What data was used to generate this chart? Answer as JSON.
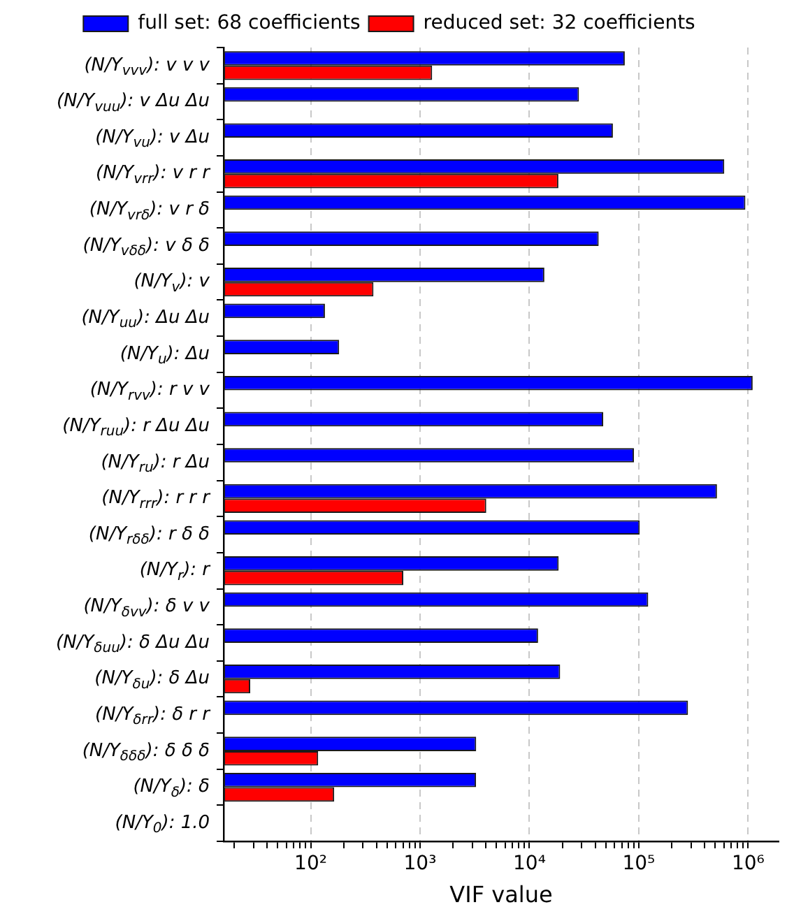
{
  "chart_data": {
    "type": "bar",
    "orientation": "horizontal",
    "xlabel": "VIF value",
    "log": "x",
    "grid": "x",
    "legend": "top",
    "categories": [
      "(N/Y$_{vvv}$): v v v",
      "(N/Y$_{vuu}$): v Δu Δu",
      "(N/Y$_{vu}$): v Δu",
      "(N/Y$_{vrr}$): v r r",
      "(N/Y$_{vrδ}$): v r δ",
      "(N/Y$_{vδδ}$): v δ δ",
      "(N/Y$_{v}$): v",
      "(N/Y$_{uu}$): Δu Δu",
      "(N/Y$_{u}$): Δu",
      "(N/Y$_{rvv}$): r v v",
      "(N/Y$_{ruu}$): r Δu Δu",
      "(N/Y$_{ru}$): r Δu",
      "(N/Y$_{rrr}$): r r r",
      "(N/Y$_{rδδ}$): r δ δ",
      "(N/Y$_{r}$): r",
      "(N/Y$_{δvv}$): δ v v",
      "(N/Y$_{δuu}$): δ Δu Δu",
      "(N/Y$_{δu}$): δ Δu",
      "(N/Y$_{δrr}$): δ r r",
      "(N/Y$_{δδδ}$): δ δ δ",
      "(N/Y$_{δ}$): δ",
      "(N/Y$_{0}$): 1.0"
    ],
    "series": [
      {
        "name": "full set: 68 coefficients",
        "color": "#0000ff",
        "values": [
          74500,
          28400,
          58000,
          605000,
          944000,
          43000,
          13700,
          135,
          182,
          1100000,
          47300,
          90400,
          519000,
          102000,
          18500,
          122000,
          12000,
          19100,
          282000,
          3260,
          3250,
          null
        ]
      },
      {
        "name": "reduced set: 32 coefficients",
        "color": "#ff0000",
        "values": [
          1290,
          null,
          null,
          18400,
          null,
          null,
          375,
          null,
          null,
          null,
          null,
          null,
          4030,
          null,
          703,
          null,
          null,
          28,
          null,
          117,
          164,
          null
        ]
      }
    ],
    "xlim": [
      16,
      1900000
    ],
    "xticks": [
      {
        "value": 20,
        "label": null
      },
      {
        "value": 30,
        "label": null
      },
      {
        "value": 40,
        "label": null
      },
      {
        "value": 50,
        "label": null
      },
      {
        "value": 60,
        "label": null
      },
      {
        "value": 70,
        "label": null
      },
      {
        "value": 80,
        "label": null
      },
      {
        "value": 90,
        "label": null
      },
      {
        "value": 100,
        "label": "10²"
      },
      {
        "value": 200,
        "label": null
      },
      {
        "value": 300,
        "label": null
      },
      {
        "value": 400,
        "label": null
      },
      {
        "value": 500,
        "label": null
      },
      {
        "value": 600,
        "label": null
      },
      {
        "value": 700,
        "label": null
      },
      {
        "value": 800,
        "label": null
      },
      {
        "value": 900,
        "label": null
      },
      {
        "value": 1000,
        "label": "10³"
      },
      {
        "value": 2000,
        "label": null
      },
      {
        "value": 3000,
        "label": null
      },
      {
        "value": 4000,
        "label": null
      },
      {
        "value": 5000,
        "label": null
      },
      {
        "value": 6000,
        "label": null
      },
      {
        "value": 7000,
        "label": null
      },
      {
        "value": 8000,
        "label": null
      },
      {
        "value": 9000,
        "label": null
      },
      {
        "value": 10000,
        "label": "10⁴"
      },
      {
        "value": 20000,
        "label": null
      },
      {
        "value": 30000,
        "label": null
      },
      {
        "value": 40000,
        "label": null
      },
      {
        "value": 50000,
        "label": null
      },
      {
        "value": 60000,
        "label": null
      },
      {
        "value": 70000,
        "label": null
      },
      {
        "value": 80000,
        "label": null
      },
      {
        "value": 90000,
        "label": null
      },
      {
        "value": 100000,
        "label": "10⁵"
      },
      {
        "value": 200000,
        "label": null
      },
      {
        "value": 300000,
        "label": null
      },
      {
        "value": 400000,
        "label": null
      },
      {
        "value": 500000,
        "label": null
      },
      {
        "value": 600000,
        "label": null
      },
      {
        "value": 700000,
        "label": null
      },
      {
        "value": 800000,
        "label": null
      },
      {
        "value": 900000,
        "label": null
      },
      {
        "value": 1000000,
        "label": "10⁶"
      }
    ]
  }
}
